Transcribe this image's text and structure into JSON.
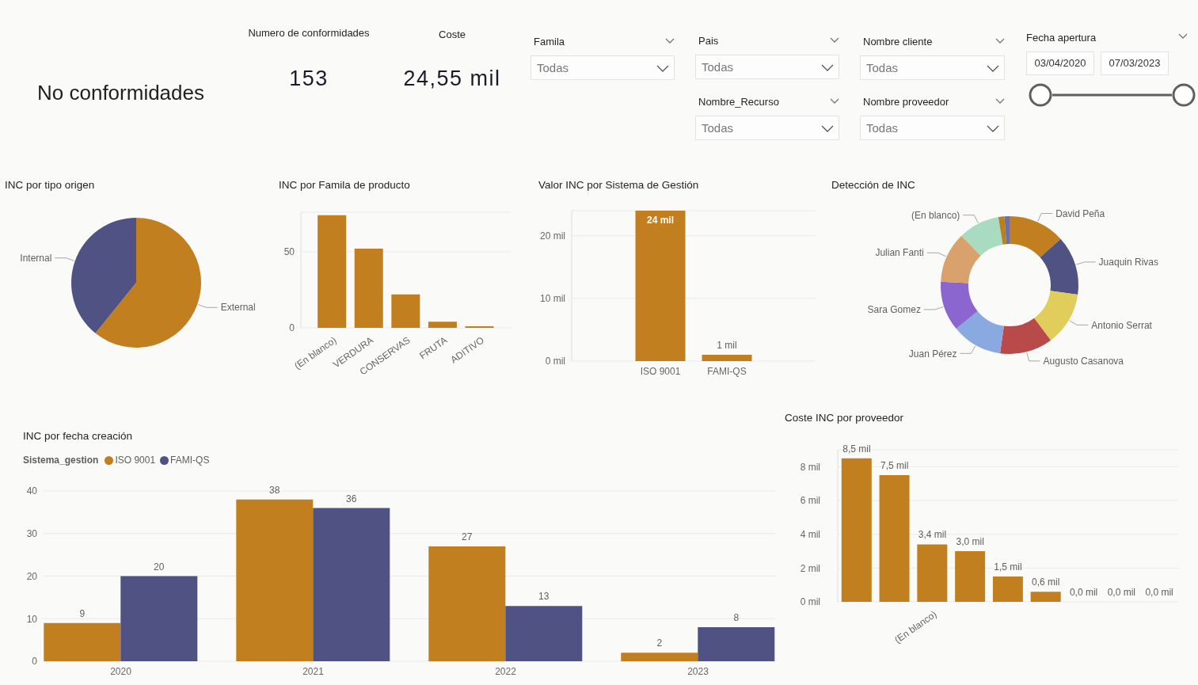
{
  "chart_data": [
    {
      "type": "other",
      "title": "No conformidades",
      "annotations": [
        "Numero de conformidades",
        "153",
        "Coste",
        "24,55 mil"
      ]
    },
    {
      "type": "other",
      "title": "Famila",
      "annotations": [
        "Todas"
      ]
    },
    {
      "type": "other",
      "title": "Pais",
      "annotations": [
        "Todas"
      ]
    },
    {
      "type": "other",
      "title": "Nombre cliente",
      "annotations": [
        "Todas"
      ]
    },
    {
      "type": "other",
      "title": "Nombre_Recurso",
      "annotations": [
        "Todas"
      ]
    },
    {
      "type": "other",
      "title": "Nombre proveedor",
      "annotations": [
        "Todas"
      ]
    },
    {
      "type": "other",
      "title": "Fecha apertura",
      "annotations": [
        "03/04/2020",
        "07/03/2023"
      ]
    },
    {
      "type": "pie",
      "title": "INC por tipo origen",
      "categories": [
        "External",
        "Internal"
      ],
      "values": [
        60.8,
        39.2
      ],
      "colors": [
        "#c27f1f",
        "#4f5283"
      ]
    },
    {
      "type": "bar",
      "title": "INC por Famila de producto",
      "categories": [
        "(En blanco)",
        "VERDURA",
        "CONSERVAS",
        "FRUTA",
        "ADITIVO"
      ],
      "values": [
        74,
        52,
        22,
        4,
        1
      ],
      "color": "#c27f1f",
      "ylim": [
        0,
        76
      ],
      "yticks": [
        0,
        50
      ],
      "grid": "y"
    },
    {
      "type": "bar",
      "title": "Valor INC por Sistema de Gestión",
      "categories": [
        "ISO 9001",
        "FAMI-QS"
      ],
      "values": [
        24,
        1
      ],
      "value_labels": [
        "24 mil",
        "1 mil"
      ],
      "color": "#c27f1f",
      "ylim": [
        0,
        24
      ],
      "yticks": [
        {
          "value": 0,
          "label": "0 mil"
        },
        {
          "value": 10,
          "label": "10 mil"
        },
        {
          "value": 20,
          "label": "20 mil"
        }
      ],
      "grid": "y"
    },
    {
      "type": "donut",
      "title": "Detección de INC",
      "categories": [
        "David Peña",
        "Juaquin Rivas",
        "Antonio Serrat",
        "Augusto Casanova",
        "Juan Pérez",
        "Sara Gomez",
        "Julian Fanti",
        "(En blanco)",
        null,
        null
      ],
      "values": [
        13.3,
        13.9,
        12.6,
        12.4,
        11.9,
        11.7,
        11.9,
        9.7,
        1.4,
        1.2
      ],
      "colors": [
        "#c27f1f",
        "#4f5283",
        "#e0cd5b",
        "#b84b49",
        "#8aa9e0",
        "#8b66cf",
        "#d9a26d",
        "#a8dbbf",
        "#b8801f",
        "#6c6fa8"
      ]
    },
    {
      "type": "bar",
      "title": "INC por fecha creación",
      "categories": [
        "2020",
        "2021",
        "2022",
        "2023"
      ],
      "series": [
        {
          "name": "ISO 9001",
          "color": "#c27f1f",
          "values": [
            9,
            38,
            27,
            2
          ]
        },
        {
          "name": "FAMI-QS",
          "color": "#4f5283",
          "values": [
            20,
            36,
            13,
            8
          ]
        }
      ],
      "legend_title": "Sistema_gestion",
      "legend": "top left",
      "ylim": [
        0,
        40
      ],
      "yticks": [
        0,
        10,
        20,
        30,
        40
      ],
      "grid": "y",
      "data_labels": true
    },
    {
      "type": "bar",
      "title": "Coste INC por proveedor",
      "categories": [
        null,
        null,
        "(En blanco)",
        null,
        null,
        null,
        null,
        null,
        null
      ],
      "values": [
        8.5,
        7.5,
        3.4,
        3.0,
        1.5,
        0.6,
        0,
        0,
        0
      ],
      "value_labels": [
        "8,5 mil",
        "7,5 mil",
        "3,4 mil",
        "3,0 mil",
        "1,5 mil",
        "0,6 mil",
        "0,0 mil",
        "0,0 mil",
        "0,0 mil"
      ],
      "color": "#c27f1f",
      "ylim": [
        0,
        9
      ],
      "yticks": [
        {
          "value": 0,
          "label": "0 mil"
        },
        {
          "value": 2,
          "label": "2 mil"
        },
        {
          "value": 4,
          "label": "4 mil"
        },
        {
          "value": 6,
          "label": "6 mil"
        },
        {
          "value": 8,
          "label": "8 mil"
        }
      ],
      "grid": "y"
    }
  ]
}
